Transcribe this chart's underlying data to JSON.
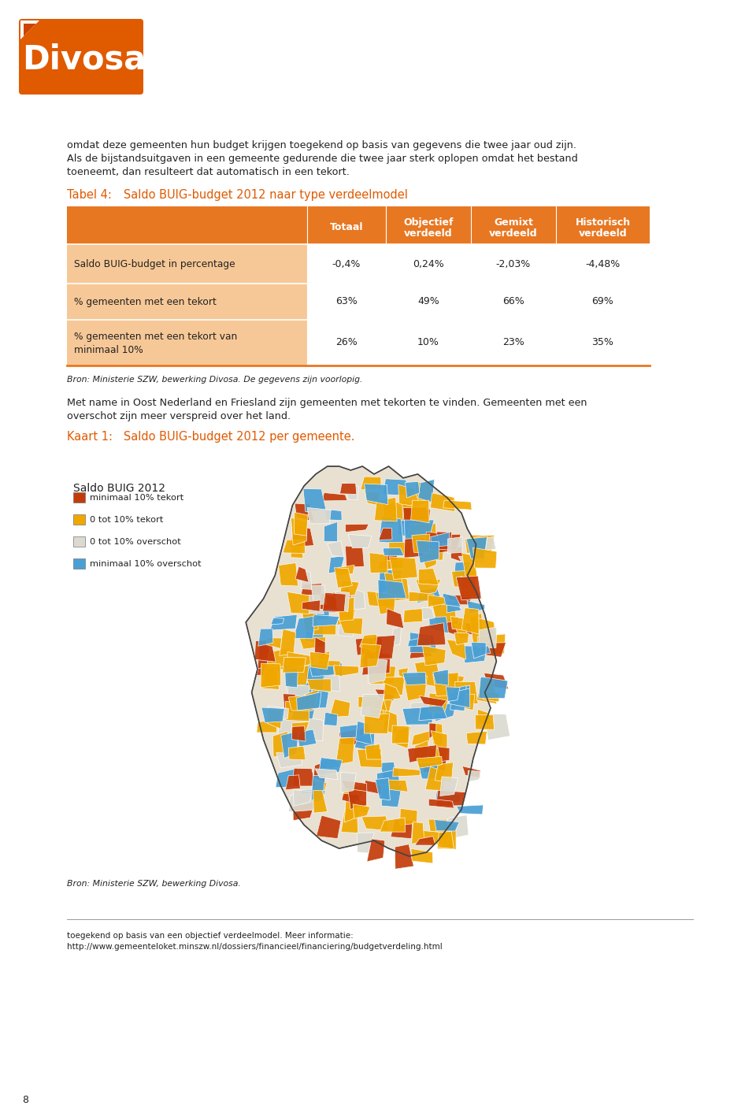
{
  "page_bg": "#ffffff",
  "logo_text": "Divosa",
  "logo_bg": "#e05a00",
  "orange_color": "#e05a00",
  "dark_text": "#222222",
  "body_text_1": "omdat deze gemeenten hun budget krijgen toegekend op basis van gegevens die twee jaar oud zijn.",
  "body_text_2": "Als de bijstandsuitgaven in een gemeente gedurende die twee jaar sterk oplopen omdat het bestand",
  "body_text_3": "toeneemt, dan resulteert dat automatisch in een tekort.",
  "table_title_prefix": "Tabel 4:",
  "table_title_rest": "   Saldo BUIG-budget 2012 naar type verdeelmodel",
  "table_header_bg": "#e87722",
  "light_orange": "#f7c897",
  "table_col_headers": [
    "Totaal",
    "Objectief\nverdeeld",
    "Gemixt\nverdeeld",
    "Historisch\nverdeeld"
  ],
  "table_rows": [
    [
      "Saldo BUIG-budget in percentage",
      "-0,4%",
      "0,24%",
      "-2,03%",
      "-4,48%"
    ],
    [
      "% gemeenten met een tekort",
      "63%",
      "49%",
      "66%",
      "69%"
    ],
    [
      "% gemeenten met een tekort van\nminimaal 10%",
      "26%",
      "10%",
      "23%",
      "35%"
    ]
  ],
  "table_source": "Bron: Ministerie SZW, bewerking Divosa. De gegevens zijn voorlopig.",
  "body_text_4": "Met name in Oost Nederland en Friesland zijn gemeenten met tekorten te vinden. Gemeenten met een",
  "body_text_5": "overschot zijn meer verspreid over het land.",
  "kaart_title_prefix": "Kaart 1:",
  "kaart_title_rest": "   Saldo BUIG-budget 2012 per gemeente.",
  "legend_title": "Saldo BUIG 2012",
  "legend_items": [
    {
      "color": "#c43b0a",
      "label": "minimaal 10% tekort"
    },
    {
      "color": "#f0a800",
      "label": "0 tot 10% tekort"
    },
    {
      "color": "#dcdad0",
      "label": "0 tot 10% overschot"
    },
    {
      "color": "#4a9fd4",
      "label": "minimaal 10% overschot"
    }
  ],
  "footer_source": "Bron: Ministerie SZW, bewerking Divosa.",
  "footnote_line": "toegekend op basis van een objectief verdeelmodel. Meer informatie:",
  "footnote_url": "http://www.gemeenteloket.minszw.nl/dossiers/financieel/financiering/budgetverdeling.html",
  "page_number": "8"
}
